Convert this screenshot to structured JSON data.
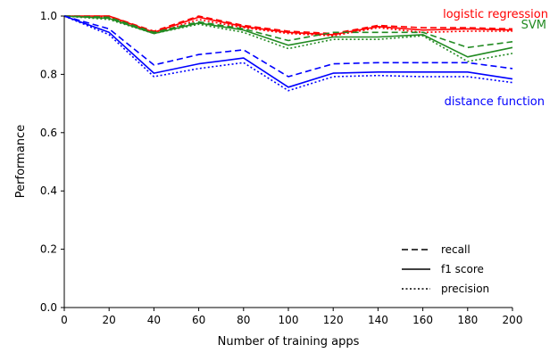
{
  "chart_data": {
    "type": "line",
    "xlabel": "Number of training apps",
    "ylabel": "Performance",
    "xlim": [
      0,
      200
    ],
    "ylim": [
      0,
      1
    ],
    "x_ticks": [
      0,
      20,
      40,
      60,
      80,
      100,
      120,
      140,
      160,
      180,
      200
    ],
    "x_tick_labels": [
      "0",
      "20",
      "40",
      "60",
      "80",
      "100",
      "120",
      "140",
      "160",
      "180",
      "200"
    ],
    "y_ticks": [
      0,
      0.2,
      0.4,
      0.6,
      0.8,
      1.0
    ],
    "y_tick_labels": [
      "0.0",
      "0.2",
      "0.4",
      "0.6",
      "0.8",
      "1.0"
    ],
    "grid": false,
    "x": [
      0,
      20,
      40,
      60,
      80,
      100,
      120,
      140,
      160,
      180,
      200
    ],
    "groups": [
      {
        "label": "logistic regression",
        "color": "#ff0000",
        "series": [
          {
            "metric": "recall",
            "values": [
              1.0,
              1.0,
              0.948,
              1.0,
              0.968,
              0.948,
              0.94,
              0.968,
              0.96,
              0.96,
              0.956
            ]
          },
          {
            "metric": "f1 score",
            "values": [
              1.0,
              1.0,
              0.944,
              0.996,
              0.964,
              0.944,
              0.936,
              0.964,
              0.952,
              0.956,
              0.952
            ]
          },
          {
            "metric": "precision",
            "values": [
              1.0,
              0.996,
              0.94,
              0.988,
              0.96,
              0.94,
              0.932,
              0.96,
              0.944,
              0.948,
              0.948
            ]
          }
        ]
      },
      {
        "label": "SVM",
        "color": "#228b22",
        "series": [
          {
            "metric": "recall",
            "values": [
              1.0,
              0.996,
              0.944,
              0.98,
              0.956,
              0.916,
              0.944,
              0.944,
              0.944,
              0.892,
              0.912
            ]
          },
          {
            "metric": "f1 score",
            "values": [
              1.0,
              0.992,
              0.94,
              0.976,
              0.952,
              0.9,
              0.928,
              0.928,
              0.936,
              0.86,
              0.892
            ]
          },
          {
            "metric": "precision",
            "values": [
              1.0,
              0.988,
              0.94,
              0.972,
              0.944,
              0.888,
              0.92,
              0.92,
              0.932,
              0.844,
              0.872
            ]
          }
        ]
      },
      {
        "label": "distance function",
        "color": "#0000ff",
        "series": [
          {
            "metric": "recall",
            "values": [
              1.0,
              0.956,
              0.832,
              0.868,
              0.884,
              0.792,
              0.836,
              0.84,
              0.84,
              0.84,
              0.82
            ]
          },
          {
            "metric": "f1 score",
            "values": [
              1.0,
              0.944,
              0.804,
              0.836,
              0.856,
              0.756,
              0.804,
              0.808,
              0.808,
              0.808,
              0.784
            ]
          },
          {
            "metric": "precision",
            "values": [
              1.0,
              0.936,
              0.792,
              0.82,
              0.84,
              0.744,
              0.792,
              0.796,
              0.792,
              0.792,
              0.772
            ]
          }
        ]
      }
    ],
    "legend": {
      "placement": "bottom-right",
      "entries": [
        {
          "label": "recall",
          "style": "dashed"
        },
        {
          "label": "f1 score",
          "style": "solid"
        },
        {
          "label": "precision",
          "style": "dotted"
        }
      ]
    }
  }
}
